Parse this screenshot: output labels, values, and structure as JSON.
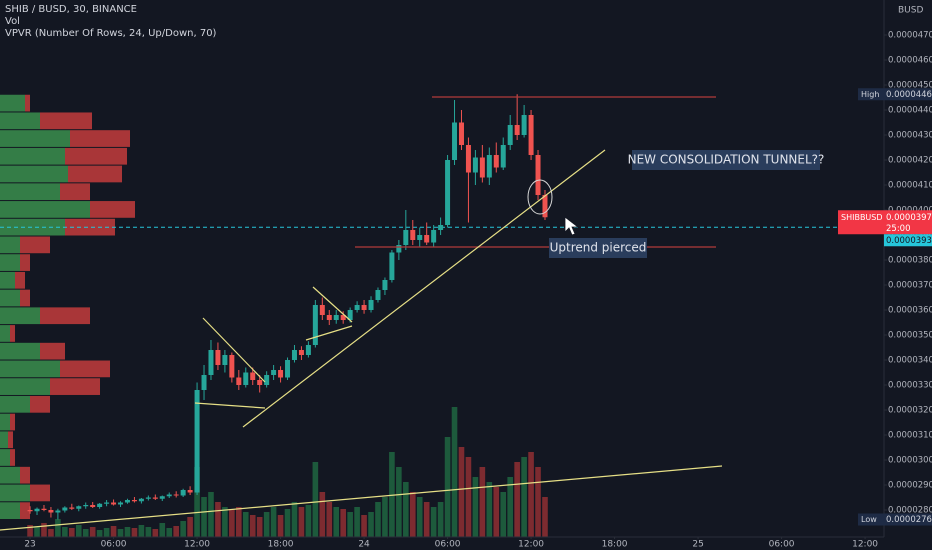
{
  "chart_data": {
    "type": "candlestick",
    "title": "SHIB / BUSD, 30, BINANCE",
    "indicators": [
      "Vol",
      "VPVR (Number Of Rows, 24, Up/Down, 70)"
    ],
    "currency": "BUSD",
    "x": [
      0,
      0.5,
      1,
      1.5,
      2,
      2.5,
      3,
      3.5,
      4,
      4.5,
      5,
      5.5,
      6,
      6.5,
      7,
      7.5,
      8,
      8.5,
      9,
      9.5,
      10,
      10.5,
      11,
      11.5,
      12,
      12.5,
      13,
      13.5,
      14,
      14.5,
      15,
      15.5,
      16,
      16.5,
      17,
      17.5,
      18,
      18.5,
      19,
      19.5,
      20,
      20.5,
      21,
      21.5,
      22,
      22.5,
      23,
      23.5,
      24,
      24.5,
      25,
      25.5,
      26,
      26.5,
      27,
      27.5,
      28,
      28.5,
      29,
      29.5,
      30,
      30.5,
      31,
      31.5,
      32,
      32.5,
      33,
      33.5,
      34,
      34.5,
      35,
      35.5,
      36,
      36.5,
      37
    ],
    "open": [
      2.8e-05,
      2.795e-05,
      2.805e-05,
      2.8e-05,
      2.79e-05,
      2.798e-05,
      2.81e-05,
      2.805e-05,
      2.815e-05,
      2.82e-05,
      2.812e-05,
      2.825e-05,
      2.83e-05,
      2.822e-05,
      2.83e-05,
      2.84e-05,
      2.835e-05,
      2.845e-05,
      2.85e-05,
      2.845e-05,
      2.855e-05,
      2.862e-05,
      2.858e-05,
      2.88e-05,
      2.87e-05,
      3.28e-05,
      3.34e-05,
      3.44e-05,
      3.38e-05,
      3.42e-05,
      3.33e-05,
      3.3e-05,
      3.35e-05,
      3.32e-05,
      3.3e-05,
      3.34e-05,
      3.36e-05,
      3.33e-05,
      3.4e-05,
      3.44e-05,
      3.42e-05,
      3.46e-05,
      3.62e-05,
      3.58e-05,
      3.56e-05,
      3.58e-05,
      3.56e-05,
      3.6e-05,
      3.62e-05,
      3.6e-05,
      3.64e-05,
      3.68e-05,
      3.72e-05,
      3.83e-05,
      3.86e-05,
      3.92e-05,
      3.88e-05,
      3.9e-05,
      3.87e-05,
      3.92e-05,
      3.94e-05,
      4.2e-05,
      4.35e-05,
      4.26e-05,
      4.15e-05,
      4.21e-05,
      4.13e-05,
      4.22e-05,
      4.17e-05,
      4.26e-05,
      4.34e-05,
      4.3e-05,
      4.38e-05,
      4.22e-05,
      4.06e-05
    ],
    "high": [
      2.815e-05,
      2.81e-05,
      2.82e-05,
      2.812e-05,
      2.805e-05,
      2.815e-05,
      2.825e-05,
      2.818e-05,
      2.83e-05,
      2.832e-05,
      2.828e-05,
      2.84e-05,
      2.842e-05,
      2.835e-05,
      2.845e-05,
      2.852e-05,
      2.848e-05,
      2.858e-05,
      2.862e-05,
      2.858e-05,
      2.87e-05,
      2.875e-05,
      2.885e-05,
      2.895e-05,
      3.31e-05,
      3.38e-05,
      3.48e-05,
      3.47e-05,
      3.44e-05,
      3.43e-05,
      3.36e-05,
      3.37e-05,
      3.37e-05,
      3.34e-05,
      3.355e-05,
      3.38e-05,
      3.375e-05,
      3.41e-05,
      3.46e-05,
      3.455e-05,
      3.475e-05,
      3.64e-05,
      3.65e-05,
      3.6e-05,
      3.6e-05,
      3.595e-05,
      3.61e-05,
      3.635e-05,
      3.64e-05,
      3.655e-05,
      3.69e-05,
      3.73e-05,
      3.84e-05,
      3.88e-05,
      4e-05,
      3.96e-05,
      3.93e-05,
      3.95e-05,
      3.94e-05,
      3.97e-05,
      4.22e-05,
      4.44e-05,
      4.4e-05,
      4.29e-05,
      4.24e-05,
      4.26e-05,
      4.25e-05,
      4.27e-05,
      4.29e-05,
      4.38e-05,
      4.463e-05,
      4.42e-05,
      4.4e-05,
      4.24e-05,
      4.08e-05
    ],
    "low": [
      2.785e-05,
      2.78e-05,
      2.795e-05,
      2.77e-05,
      2.762e-05,
      2.79e-05,
      2.8e-05,
      2.795e-05,
      2.805e-05,
      2.808e-05,
      2.805e-05,
      2.815e-05,
      2.818e-05,
      2.812e-05,
      2.825e-05,
      2.83e-05,
      2.826e-05,
      2.838e-05,
      2.84e-05,
      2.836e-05,
      2.848e-05,
      2.85e-05,
      2.852e-05,
      2.86e-05,
      2.86e-05,
      3.24e-05,
      3.32e-05,
      3.36e-05,
      3.35e-05,
      3.31e-05,
      3.28e-05,
      3.29e-05,
      3.3e-05,
      3.27e-05,
      3.29e-05,
      3.32e-05,
      3.31e-05,
      3.32e-05,
      3.39e-05,
      3.4e-05,
      3.41e-05,
      3.45e-05,
      3.56e-05,
      3.54e-05,
      3.545e-05,
      3.545e-05,
      3.55e-05,
      3.59e-05,
      3.585e-05,
      3.59e-05,
      3.63e-05,
      3.66e-05,
      3.71e-05,
      3.8e-05,
      3.84e-05,
      3.86e-05,
      3.85e-05,
      3.86e-05,
      3.85e-05,
      3.9e-05,
      3.93e-05,
      4.18e-05,
      4.24e-05,
      3.95e-05,
      4.1e-05,
      4.11e-05,
      4.1e-05,
      4.15e-05,
      4.16e-05,
      4.24e-05,
      4.28e-05,
      4.29e-05,
      4.2e-05,
      4.04e-05,
      3.96e-05
    ],
    "close": [
      2.795e-05,
      2.805e-05,
      2.8e-05,
      2.79e-05,
      2.798e-05,
      2.81e-05,
      2.805e-05,
      2.815e-05,
      2.82e-05,
      2.812e-05,
      2.825e-05,
      2.83e-05,
      2.822e-05,
      2.83e-05,
      2.84e-05,
      2.835e-05,
      2.845e-05,
      2.85e-05,
      2.845e-05,
      2.855e-05,
      2.862e-05,
      2.858e-05,
      2.88e-05,
      2.87e-05,
      3.28e-05,
      3.34e-05,
      3.44e-05,
      3.38e-05,
      3.42e-05,
      3.33e-05,
      3.3e-05,
      3.35e-05,
      3.32e-05,
      3.3e-05,
      3.34e-05,
      3.36e-05,
      3.33e-05,
      3.4e-05,
      3.44e-05,
      3.42e-05,
      3.46e-05,
      3.62e-05,
      3.58e-05,
      3.56e-05,
      3.58e-05,
      3.56e-05,
      3.6e-05,
      3.62e-05,
      3.6e-05,
      3.64e-05,
      3.68e-05,
      3.72e-05,
      3.83e-05,
      3.86e-05,
      3.92e-05,
      3.88e-05,
      3.9e-05,
      3.87e-05,
      3.92e-05,
      3.94e-05,
      4.2e-05,
      4.35e-05,
      4.26e-05,
      4.15e-05,
      4.21e-05,
      4.13e-05,
      4.22e-05,
      4.17e-05,
      4.26e-05,
      4.34e-05,
      4.3e-05,
      4.38e-05,
      4.22e-05,
      4.06e-05,
      3.971e-05
    ],
    "volume": [
      12,
      10,
      14,
      8,
      18,
      10,
      9,
      12,
      8,
      10,
      7,
      9,
      11,
      8,
      10,
      9,
      12,
      10,
      8,
      14,
      9,
      11,
      16,
      20,
      70,
      40,
      45,
      35,
      30,
      28,
      30,
      25,
      22,
      20,
      25,
      30,
      22,
      28,
      35,
      30,
      32,
      75,
      45,
      35,
      30,
      28,
      25,
      30,
      22,
      25,
      35,
      40,
      85,
      70,
      55,
      45,
      40,
      35,
      30,
      35,
      100,
      130,
      90,
      80,
      60,
      70,
      55,
      50,
      45,
      60,
      75,
      80,
      85,
      70,
      40
    ],
    "colors": {
      "up": "#26a69a",
      "down": "#ef5350",
      "volume_up": "#1d5a3c",
      "volume_down": "#7d2b30",
      "vpvr_up": "#3b8f4e",
      "vpvr_down": "#c43c3c"
    },
    "vpvr": {
      "up": [
        25,
        40,
        70,
        65,
        68,
        60,
        90,
        65,
        20,
        20,
        15,
        20,
        40,
        10,
        40,
        60,
        50,
        30,
        10,
        8,
        10,
        20,
        30,
        20
      ],
      "down": [
        5,
        52,
        60,
        62,
        54,
        30,
        45,
        50,
        30,
        10,
        10,
        10,
        50,
        5,
        25,
        50,
        50,
        20,
        5,
        5,
        5,
        10,
        20,
        10
      ]
    },
    "xlim": [
      -2.16,
      61.36
    ],
    "xticks": [
      {
        "value": 0,
        "label": "23"
      },
      {
        "value": 6,
        "label": "06:00"
      },
      {
        "value": 12,
        "label": "12:00"
      },
      {
        "value": 18,
        "label": "18:00"
      },
      {
        "value": 24,
        "label": "24"
      },
      {
        "value": 30,
        "label": "06:00"
      },
      {
        "value": 36,
        "label": "12:00"
      },
      {
        "value": 42,
        "label": "18:00"
      },
      {
        "value": 48,
        "label": "25"
      },
      {
        "value": 54,
        "label": "06:00"
      },
      {
        "value": 60,
        "label": "12:00"
      }
    ],
    "ylim": [
      2.692e-05,
      4.84e-05
    ],
    "yticks": [
      {
        "value": 2.8e-05,
        "label": "0.00002800"
      },
      {
        "value": 2.9e-05,
        "label": "0.00002900"
      },
      {
        "value": 3e-05,
        "label": "0.00003000"
      },
      {
        "value": 3.1e-05,
        "label": "0.00003100"
      },
      {
        "value": 3.2e-05,
        "label": "0.00003200"
      },
      {
        "value": 3.3e-05,
        "label": "0.00003300"
      },
      {
        "value": 3.4e-05,
        "label": "0.00003400"
      },
      {
        "value": 3.5e-05,
        "label": "0.00003500"
      },
      {
        "value": 3.6e-05,
        "label": "0.00003600"
      },
      {
        "value": 3.7e-05,
        "label": "0.00003700"
      },
      {
        "value": 3.8e-05,
        "label": "0.00003800"
      },
      {
        "value": 3.9e-05,
        "label": "0.00003900"
      },
      {
        "value": 4e-05,
        "label": "0.00004000"
      },
      {
        "value": 4.1e-05,
        "label": "0.00004100"
      },
      {
        "value": 4.2e-05,
        "label": "0.00004200"
      },
      {
        "value": 4.3e-05,
        "label": "0.00004300"
      },
      {
        "value": 4.4e-05,
        "label": "0.00004400"
      },
      {
        "value": 4.5e-05,
        "label": "0.00004500"
      },
      {
        "value": 4.6e-05,
        "label": "0.00004600"
      },
      {
        "value": 4.7e-05,
        "label": "0.00004700"
      }
    ],
    "high_label": {
      "text": "High",
      "value": 4.463e-05
    },
    "low_label": {
      "text": "Low",
      "value": 2.762e-05
    },
    "last_price": {
      "symbol": "SHIBBUSD",
      "value": 3.971e-05,
      "countdown": "25:00",
      "color": "#f23645"
    },
    "line_price": {
      "value": 3.931e-05,
      "color": "#26c6da"
    },
    "annotations": [
      "NEW CONSOLIDATION TUNNEL??",
      "Uptrend pierced"
    ]
  }
}
